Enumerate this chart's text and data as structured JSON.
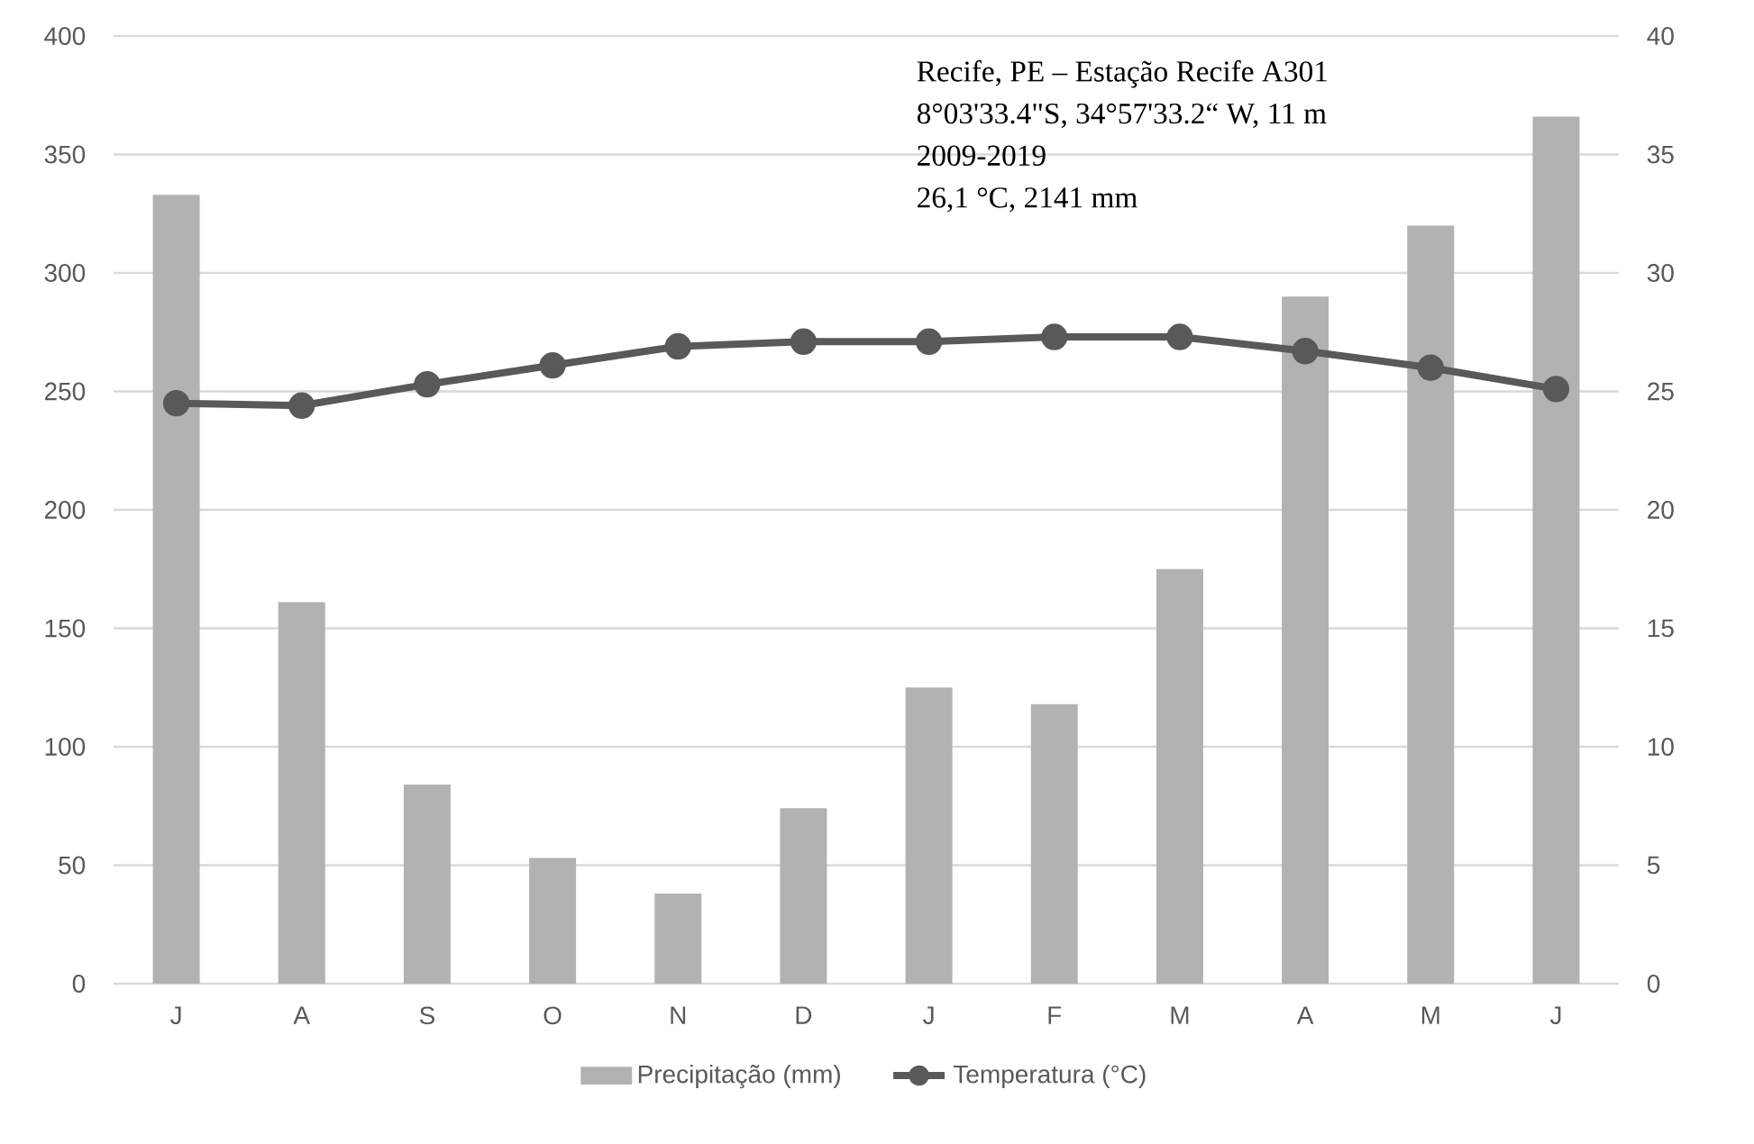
{
  "chart_data": {
    "type": "bar",
    "categories": [
      "J",
      "A",
      "S",
      "O",
      "N",
      "D",
      "J",
      "F",
      "M",
      "A",
      "M",
      "J"
    ],
    "series": [
      {
        "name": "Precipitação (mm)",
        "color": "#b2b2b2",
        "values": [
          333,
          161,
          84,
          53,
          38,
          74,
          125,
          118,
          175,
          290,
          320,
          366
        ]
      },
      {
        "name": "Temperatura (°C)",
        "type": "line",
        "axis": "y2",
        "color": "#595959",
        "marker": "circle",
        "line_style": "solid",
        "values": [
          24.5,
          24.4,
          25.3,
          26.1,
          26.9,
          27.1,
          27.1,
          27.3,
          27.3,
          26.7,
          26.0,
          25.1
        ]
      }
    ],
    "ylim": [
      0,
      400
    ],
    "yticks": [
      0,
      50,
      100,
      150,
      200,
      250,
      300,
      350,
      400
    ],
    "y2lim": [
      0,
      40
    ],
    "y2ticks": [
      0,
      5,
      10,
      15,
      20,
      25,
      30,
      35,
      40
    ],
    "grid": "y",
    "legend": "bottom",
    "annotations": [
      "Recife, PE – Estação Recife A301",
      "8°03'33.4\"S, 34°57'33.2“ W, 11 m",
      "2009-2019",
      "26,1 °C, 2141 mm"
    ]
  }
}
